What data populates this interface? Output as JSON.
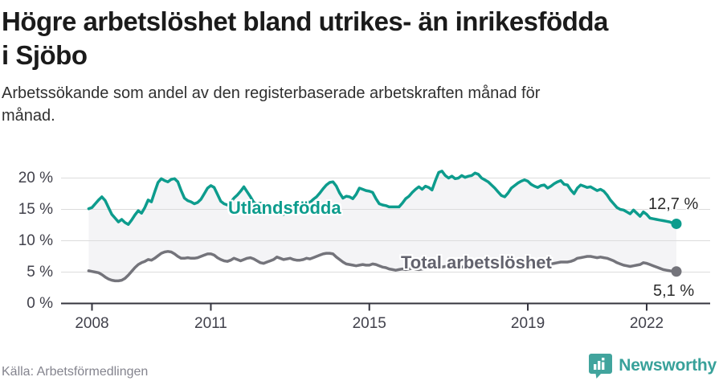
{
  "header": {
    "title": "Högre arbetslöshet bland utrikes- än inrikesfödda i Sjöbo",
    "subtitle": "Arbetssökande som andel av den registerbaserade arbetskraften månad för månad."
  },
  "footer": {
    "source": "Källa: Arbetsförmedlingen",
    "brand": "Newsworthy",
    "brand_color": "#38a19a"
  },
  "chart_data": {
    "type": "line",
    "title": "Högre arbetslöshet bland utrikes- än inrikesfödda i Sjöbo",
    "ylabel": "",
    "xlabel": "",
    "unit": "%",
    "grid": "horizontal",
    "legend_position": "inline-on-lines",
    "ylim": [
      0,
      21.5
    ],
    "xlim": [
      2007.8,
      2023.2
    ],
    "x_start_year": 2007.917,
    "x_step_months": 1,
    "band_fill_between_series": true,
    "band_fill_color": "#f4f4f6",
    "grid_color": "#dcdcdc",
    "axis_color": "#34343e",
    "y_ticks": [
      {
        "value": 20,
        "label": "20 %"
      },
      {
        "value": 15,
        "label": "15 %"
      },
      {
        "value": 10,
        "label": "10 %"
      },
      {
        "value": 5,
        "label": "5 %"
      },
      {
        "value": 0,
        "label": "0 %"
      }
    ],
    "x_ticks": [
      {
        "value": 2008,
        "label": "2008"
      },
      {
        "value": 2011,
        "label": "2011"
      },
      {
        "value": 2015,
        "label": "2015"
      },
      {
        "value": 2019,
        "label": "2019"
      },
      {
        "value": 2022,
        "label": "2022"
      }
    ],
    "series": [
      {
        "name": "Utlandsfödda",
        "color": "#0d9c8d",
        "end_value": 12.7,
        "end_label": "12,7 %",
        "values": [
          15.1,
          15.3,
          15.9,
          16.5,
          17.0,
          16.4,
          15.3,
          14.2,
          13.6,
          13.0,
          13.4,
          12.9,
          12.6,
          13.3,
          14.1,
          14.8,
          14.4,
          15.3,
          16.5,
          16.2,
          17.8,
          19.3,
          19.9,
          19.6,
          19.4,
          19.8,
          19.9,
          19.4,
          18.0,
          16.8,
          16.4,
          16.2,
          15.9,
          16.1,
          16.6,
          17.5,
          18.4,
          18.8,
          18.5,
          17.4,
          16.3,
          15.9,
          15.7,
          16.1,
          16.8,
          17.3,
          17.9,
          18.6,
          17.8,
          17.0,
          16.1,
          15.8,
          16.0,
          15.7,
          15.9,
          15.6,
          15.3,
          14.9,
          14.5,
          14.2,
          14.4,
          14.8,
          15.3,
          15.8,
          16.1,
          15.9,
          16.3,
          16.1,
          16.6,
          17.0,
          17.6,
          18.3,
          18.9,
          19.3,
          19.4,
          18.7,
          17.6,
          16.8,
          17.1,
          17.0,
          16.7,
          17.4,
          18.4,
          18.2,
          18.0,
          17.9,
          17.7,
          16.7,
          15.9,
          15.7,
          15.6,
          15.4,
          15.4,
          15.4,
          15.4,
          16.0,
          16.7,
          17.1,
          17.7,
          18.2,
          18.6,
          18.2,
          18.7,
          18.5,
          18.1,
          19.6,
          20.9,
          21.1,
          20.4,
          20.0,
          20.3,
          19.9,
          20.0,
          20.4,
          20.1,
          20.3,
          20.4,
          20.8,
          20.6,
          20.0,
          19.7,
          19.4,
          18.9,
          18.4,
          17.8,
          17.2,
          17.0,
          17.6,
          18.4,
          18.8,
          19.2,
          19.5,
          19.7,
          19.5,
          19.0,
          18.7,
          18.5,
          18.8,
          18.9,
          18.4,
          18.7,
          19.1,
          19.4,
          19.6,
          19.0,
          18.9,
          18.1,
          17.5,
          18.4,
          18.9,
          18.7,
          18.5,
          18.6,
          18.3,
          18.0,
          18.2,
          17.9,
          17.3,
          16.5,
          15.9,
          15.3,
          15.0,
          14.9,
          14.6,
          14.3,
          14.9,
          14.4,
          13.9,
          14.6,
          14.2,
          13.6,
          13.5,
          13.4,
          13.3,
          13.2,
          13.1,
          13.0,
          12.8,
          12.7
        ]
      },
      {
        "name": "Total arbetslöshet",
        "color": "#74747b",
        "end_value": 5.1,
        "end_label": "5,1 %",
        "values": [
          5.2,
          5.1,
          5.0,
          4.9,
          4.6,
          4.2,
          3.9,
          3.7,
          3.6,
          3.6,
          3.7,
          4.0,
          4.5,
          5.1,
          5.7,
          6.2,
          6.5,
          6.7,
          7.0,
          6.9,
          7.2,
          7.6,
          8.0,
          8.2,
          8.3,
          8.2,
          7.9,
          7.5,
          7.2,
          7.2,
          7.3,
          7.2,
          7.2,
          7.3,
          7.5,
          7.7,
          7.9,
          7.9,
          7.7,
          7.3,
          7.0,
          6.8,
          6.7,
          6.9,
          7.2,
          7.0,
          6.8,
          7.0,
          7.2,
          7.3,
          7.1,
          6.8,
          6.5,
          6.4,
          6.6,
          6.8,
          7.0,
          7.4,
          7.2,
          7.0,
          7.1,
          7.2,
          7.0,
          6.9,
          6.9,
          7.0,
          7.2,
          7.1,
          7.3,
          7.5,
          7.7,
          7.9,
          8.0,
          8.0,
          7.9,
          7.4,
          7.0,
          6.6,
          6.3,
          6.2,
          6.1,
          6.0,
          6.1,
          6.2,
          6.1,
          6.1,
          6.3,
          6.2,
          6.0,
          5.8,
          5.7,
          5.5,
          5.4,
          5.3,
          5.4,
          5.5,
          5.4,
          5.5,
          5.6,
          5.5,
          5.4,
          5.5,
          5.6,
          5.7,
          5.6,
          5.7,
          5.8,
          5.8,
          5.9,
          5.9,
          5.8,
          5.8,
          5.7,
          5.8,
          5.9,
          6.0,
          5.9,
          6.0,
          6.1,
          6.1,
          6.2,
          6.2,
          6.1,
          6.0,
          5.9,
          5.9,
          6.0,
          6.0,
          6.1,
          6.1,
          6.2,
          6.2,
          6.3,
          6.3,
          6.2,
          6.2,
          6.1,
          6.2,
          6.3,
          6.2,
          6.3,
          6.4,
          6.5,
          6.6,
          6.6,
          6.6,
          6.7,
          6.9,
          7.2,
          7.3,
          7.4,
          7.5,
          7.5,
          7.4,
          7.3,
          7.4,
          7.3,
          7.2,
          7.0,
          6.8,
          6.5,
          6.3,
          6.1,
          6.0,
          5.9,
          6.0,
          6.1,
          6.2,
          6.5,
          6.4,
          6.2,
          6.0,
          5.8,
          5.6,
          5.4,
          5.3,
          5.2,
          5.1,
          5.1
        ]
      }
    ]
  }
}
